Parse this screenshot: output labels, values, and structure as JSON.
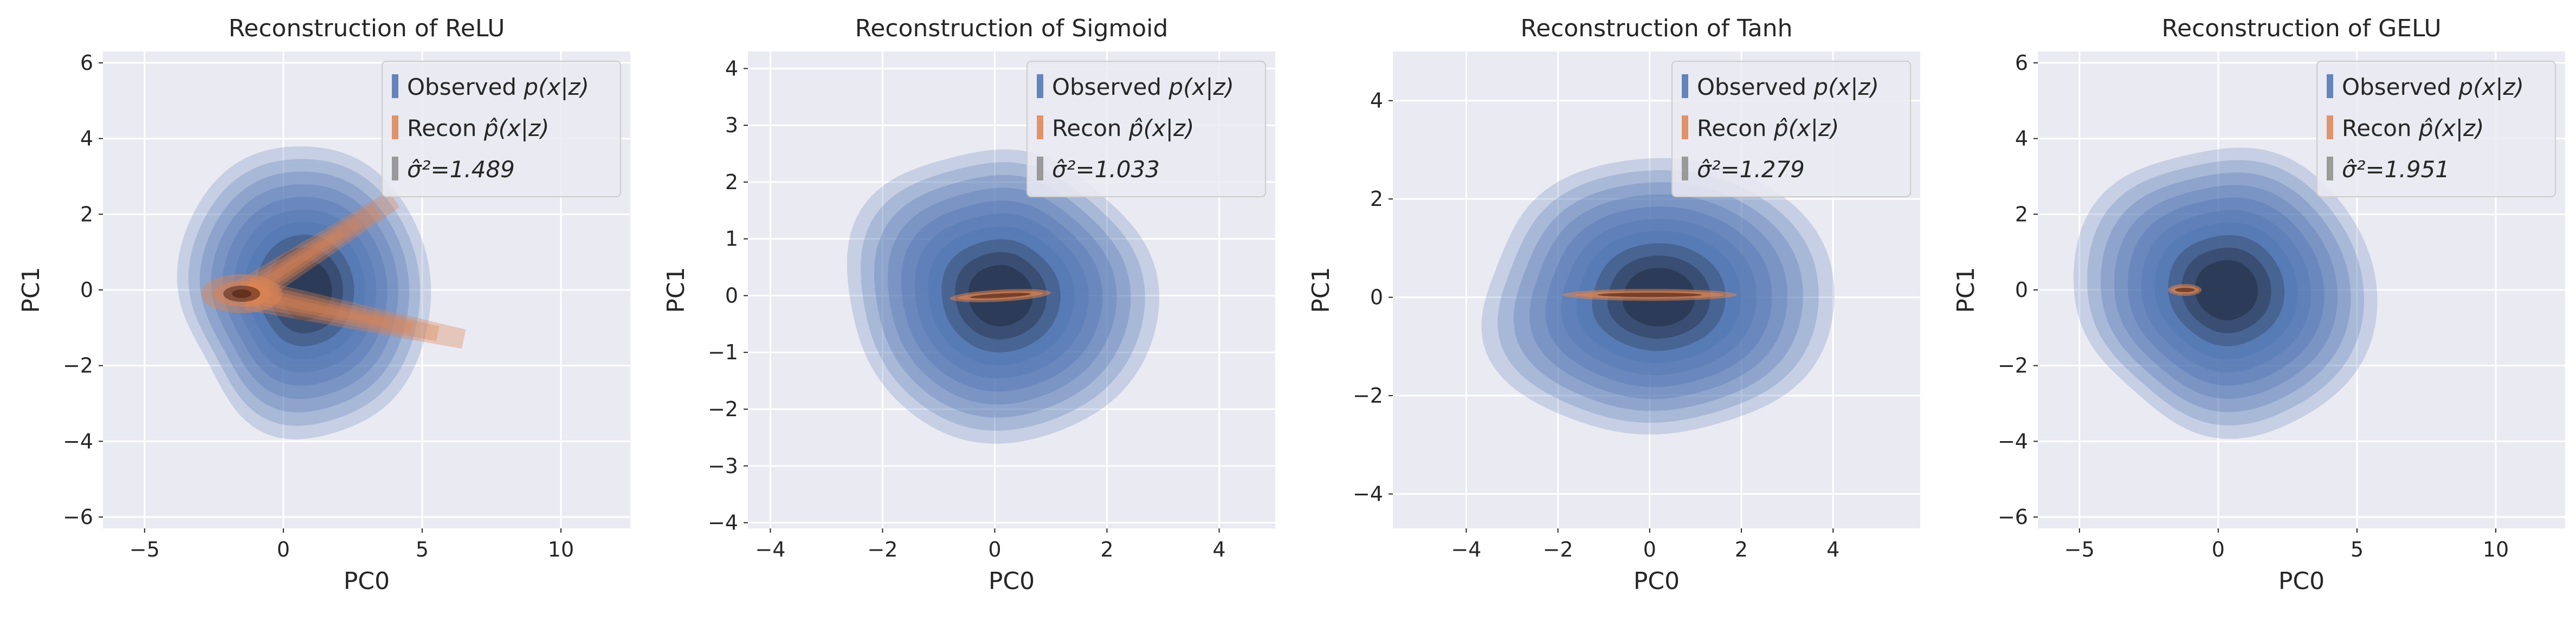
{
  "figure": {
    "background": "#ffffff",
    "axes_facecolor": "#eaeaf2",
    "grid_color": "#ffffff",
    "text_color": "#262626",
    "observed_color": "#4c72b0",
    "observed_dark_color": "#1a2030",
    "recon_color": "#dd8452",
    "recon_dark_color": "#5a2a1a",
    "sigma_color": "#8c8c8c"
  },
  "chart_data": [
    {
      "type": "kde-contour",
      "title": "Reconstruction of ReLU",
      "xlabel": "PC0",
      "ylabel": "PC1",
      "xlim": [
        -6.5,
        12.5
      ],
      "ylim": [
        -6.3,
        6.3
      ],
      "xticks": [
        -5,
        0,
        5,
        10
      ],
      "xtick_labels": [
        "−5",
        "0",
        "5",
        "10"
      ],
      "yticks": [
        -6,
        -4,
        -2,
        0,
        2,
        4,
        6
      ],
      "ytick_labels": [
        "−6",
        "−4",
        "−2",
        "0",
        "2",
        "4",
        "6"
      ],
      "grid": true,
      "legend_position": "top-right",
      "legend": [
        {
          "prefix": "Observed ",
          "math": "p(x|z)",
          "color": "#4c72b0"
        },
        {
          "prefix": "Recon ",
          "math": "p̂(x|z)",
          "color": "#dd8452"
        },
        {
          "prefix": "",
          "math": "σ̂²=1.489",
          "color": "#8c8c8c"
        }
      ],
      "observed": {
        "center": [
          0.8,
          0.0
        ],
        "extent_x": [
          -3.7,
          5.5
        ],
        "extent_y": [
          -3.7,
          3.9
        ]
      },
      "recon": {
        "shape": "v-arms",
        "vertex": [
          -1.3,
          -0.1
        ],
        "arms": [
          [
            4.0,
            2.4
          ],
          [
            6.5,
            -1.3
          ]
        ],
        "peak": [
          -1.5,
          -0.1
        ]
      },
      "sigma2": 1.489
    },
    {
      "type": "kde-contour",
      "title": "Reconstruction of Sigmoid",
      "xlabel": "PC0",
      "ylabel": "PC1",
      "xlim": [
        -4.4,
        5.0
      ],
      "ylim": [
        -4.1,
        4.3
      ],
      "xticks": [
        -4,
        -2,
        0,
        2,
        4
      ],
      "xtick_labels": [
        "−4",
        "−2",
        "0",
        "2",
        "4"
      ],
      "yticks": [
        -4,
        -3,
        -2,
        -1,
        0,
        1,
        2,
        3,
        4
      ],
      "ytick_labels": [
        "−4",
        "−3",
        "−2",
        "−1",
        "0",
        "1",
        "2",
        "3",
        "4"
      ],
      "grid": true,
      "legend_position": "top-right",
      "legend": [
        {
          "prefix": "Observed ",
          "math": "p(x|z)",
          "color": "#4c72b0"
        },
        {
          "prefix": "Recon ",
          "math": "p̂(x|z)",
          "color": "#dd8452"
        },
        {
          "prefix": "",
          "math": "σ̂²=1.033",
          "color": "#8c8c8c"
        }
      ],
      "observed": {
        "center": [
          0.1,
          0.0
        ],
        "extent_x": [
          -2.8,
          2.7
        ],
        "extent_y": [
          -2.6,
          2.6
        ]
      },
      "recon": {
        "shape": "line",
        "from": [
          -0.8,
          -0.05
        ],
        "to": [
          1.0,
          0.05
        ],
        "peak": [
          0.0,
          0.0
        ]
      },
      "sigma2": 1.033
    },
    {
      "type": "kde-contour",
      "title": "Reconstruction of Tanh",
      "xlabel": "PC0",
      "ylabel": "PC1",
      "xlim": [
        -5.6,
        5.9
      ],
      "ylim": [
        -4.7,
        5.0
      ],
      "xticks": [
        -4,
        -2,
        0,
        2,
        4
      ],
      "xtick_labels": [
        "−4",
        "−2",
        "0",
        "2",
        "4"
      ],
      "yticks": [
        -4,
        -2,
        0,
        2,
        4
      ],
      "ytick_labels": [
        "−4",
        "−2",
        "0",
        "2",
        "4"
      ],
      "grid": true,
      "legend_position": "top-right",
      "legend": [
        {
          "prefix": "Observed ",
          "math": "p(x|z)",
          "color": "#4c72b0"
        },
        {
          "prefix": "Recon ",
          "math": "p̂(x|z)",
          "color": "#dd8452"
        },
        {
          "prefix": "",
          "math": "σ̂²=1.279",
          "color": "#8c8c8c"
        }
      ],
      "observed": {
        "center": [
          0.2,
          0.0
        ],
        "extent_x": [
          -3.6,
          3.9
        ],
        "extent_y": [
          -2.9,
          2.9
        ]
      },
      "recon": {
        "shape": "line",
        "from": [
          -1.9,
          0.05
        ],
        "to": [
          1.9,
          0.05
        ],
        "peak": [
          0.0,
          0.05
        ]
      },
      "sigma2": 1.279
    },
    {
      "type": "kde-contour",
      "title": "Reconstruction of GELU",
      "xlabel": "PC0",
      "ylabel": "PC1",
      "xlim": [
        -6.5,
        12.5
      ],
      "ylim": [
        -6.3,
        6.3
      ],
      "xticks": [
        -5,
        0,
        5,
        10
      ],
      "xtick_labels": [
        "−5",
        "0",
        "5",
        "10"
      ],
      "yticks": [
        -6,
        -4,
        -2,
        0,
        2,
        4,
        6
      ],
      "ytick_labels": [
        "−6",
        "−4",
        "−2",
        "0",
        "2",
        "4",
        "6"
      ],
      "grid": true,
      "legend_position": "top-right",
      "legend": [
        {
          "prefix": "Observed ",
          "math": "p(x|z)",
          "color": "#4c72b0"
        },
        {
          "prefix": "Recon ",
          "math": "p̂(x|z)",
          "color": "#dd8452"
        },
        {
          "prefix": "",
          "math": "σ̂²=1.951",
          "color": "#8c8c8c"
        }
      ],
      "observed": {
        "center": [
          0.3,
          0.0
        ],
        "extent_x": [
          -4.0,
          6.9
        ],
        "extent_y": [
          -3.9,
          3.7
        ]
      },
      "recon": {
        "shape": "line",
        "from": [
          -1.8,
          0.0
        ],
        "to": [
          -0.6,
          0.0
        ],
        "peak": [
          -1.2,
          0.0
        ]
      },
      "sigma2": 1.951
    }
  ]
}
